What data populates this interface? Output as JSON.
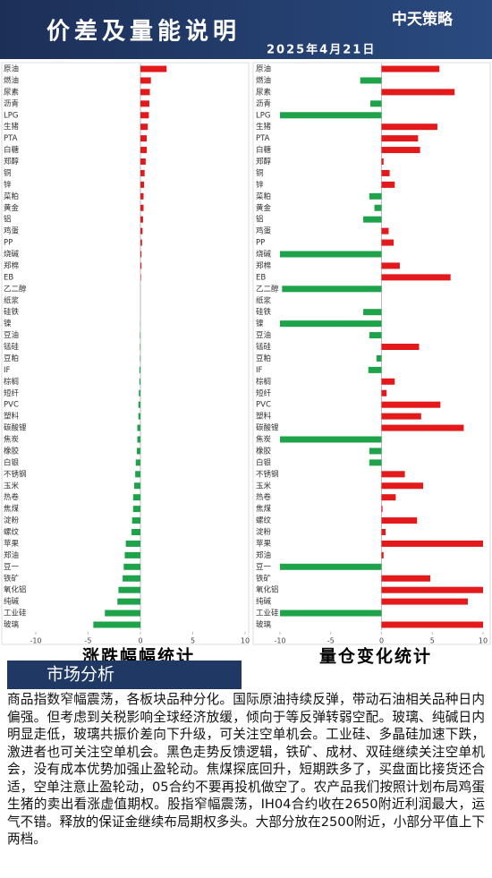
{
  "header": {
    "title": "价差及量能说明",
    "date": "2025年4月21日",
    "logo": "中天策略"
  },
  "chart_data": [
    {
      "type": "bar",
      "orientation": "horizontal",
      "title": "涨跌幅幅统计",
      "categories": [
        "原油",
        "燃油",
        "尿素",
        "沥青",
        "LPG",
        "生猪",
        "PTA",
        "白糖",
        "郑醇",
        "铜",
        "锌",
        "菜粕",
        "黄金",
        "铝",
        "鸡蛋",
        "PP",
        "烧碱",
        "郑棉",
        "EB",
        "乙二醇",
        "纸浆",
        "硅铁",
        "镍",
        "豆油",
        "锰硅",
        "豆粕",
        "IF",
        "棕榈",
        "短纤",
        "PVC",
        "塑料",
        "碳酸锂",
        "焦炭",
        "橡胶",
        "白银",
        "不锈钢",
        "玉米",
        "热卷",
        "焦煤",
        "淀粉",
        "螺纹",
        "苹果",
        "郑油",
        "豆一",
        "铁矿",
        "氧化铝",
        "纯碱",
        "工业硅",
        "玻璃"
      ],
      "values": [
        2.5,
        1.0,
        0.9,
        0.85,
        0.8,
        0.7,
        0.6,
        0.6,
        0.5,
        0.4,
        0.35,
        0.3,
        0.3,
        0.25,
        0.2,
        0.15,
        0.1,
        0.1,
        0.05,
        0,
        0,
        0,
        -0.02,
        -0.05,
        -0.05,
        -0.05,
        -0.1,
        -0.1,
        -0.15,
        -0.2,
        -0.2,
        -0.3,
        -0.3,
        -0.35,
        -0.45,
        -0.5,
        -0.6,
        -0.7,
        -0.7,
        -0.8,
        -0.85,
        -1.4,
        -1.5,
        -1.6,
        -1.7,
        -2.1,
        -2.2,
        -3.4,
        -4.5
      ],
      "color_up": "#e3191b",
      "color_down": "#1ea34a",
      "xlim": [
        -10,
        10
      ],
      "xticks": [
        -10,
        -5,
        0,
        5,
        10
      ]
    },
    {
      "type": "bar",
      "orientation": "horizontal",
      "title": "量仓变化统计",
      "categories": [
        "原油",
        "燃油",
        "尿素",
        "沥青",
        "LPG",
        "生猪",
        "PTA",
        "白糖",
        "郑醇",
        "铜",
        "锌",
        "菜粕",
        "黄金",
        "铝",
        "鸡蛋",
        "PP",
        "烧碱",
        "郑棉",
        "EB",
        "乙二醇",
        "纸浆",
        "硅铁",
        "镍",
        "豆油",
        "锰硅",
        "豆粕",
        "IF",
        "棕榈",
        "短纤",
        "PVC",
        "塑料",
        "碳酸锂",
        "焦炭",
        "橡胶",
        "白银",
        "不锈钢",
        "玉米",
        "热卷",
        "焦煤",
        "螺纹",
        "淀粉",
        "苹果",
        "郑油",
        "豆一",
        "铁矿",
        "氧化铝",
        "纯碱",
        "工业硅",
        "玻璃"
      ],
      "values": [
        5.7,
        -2.1,
        7.2,
        -1.1,
        -10,
        5.5,
        3.6,
        3.8,
        0.2,
        0.8,
        1.3,
        -1.2,
        -0.7,
        -1.8,
        0.7,
        1.2,
        -10,
        1.8,
        6.8,
        -9.8,
        0,
        -1.8,
        -10,
        -1.2,
        3.7,
        -0.5,
        -1.3,
        1.3,
        0.5,
        5.8,
        3.9,
        8.1,
        -10,
        -1.2,
        -1.2,
        2.3,
        4.1,
        1.4,
        0.1,
        3.5,
        0.4,
        10,
        0.2,
        -10,
        4.8,
        10,
        8.5,
        -10,
        10
      ],
      "color_up": "#e3191b",
      "color_down": "#1ea34a",
      "xlim": [
        -10,
        10
      ],
      "xticks": [
        -10,
        -5,
        0,
        5,
        10
      ]
    }
  ],
  "analysis": {
    "title": "市场分析",
    "text": "商品指数窄幅震荡，各板块品种分化。国际原油持续反弹，带动石油相关品种日内偏强。但考虑到关税影响全球经济放缓，倾向于等反弹转弱空配。玻璃、纯碱日内明显走低，玻璃共振价差向下升级，可关注空单机会。工业硅、多晶硅加速下跌，激进者也可关注空单机会。黑色走势反馈逻辑，铁矿、成材、双硅继续关注空单机会，没有成本优势加强止盈轮动。焦煤探底回升，短期跌多了，买盘面比接货还合适，空单注意止盈轮动，05合约不要再投机做空了。农产品我们按照计划布局鸡蛋生猪的卖出看涨虚值期权。股指窄幅震荡，IH04合约收在2650附近利润最大，运气不错。释放的保证金继续布局期权多头。大部分放在2500附近，小部分平值上下两档。"
  }
}
